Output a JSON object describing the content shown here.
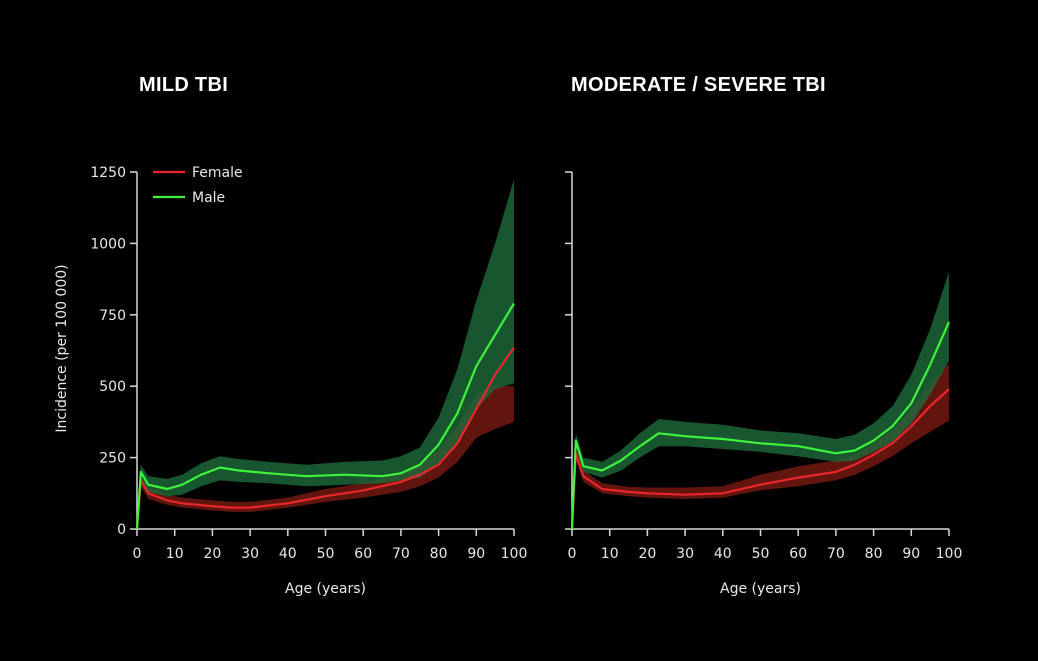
{
  "chart_data": [
    {
      "type": "line",
      "title": "MILD TBI",
      "xlabel": "Age (years)",
      "ylabel": "Incidence (per 100 000)",
      "xlim": [
        0,
        100
      ],
      "ylim": [
        0,
        1250
      ],
      "xticks": [
        0,
        10,
        20,
        30,
        40,
        50,
        60,
        70,
        80,
        90,
        100
      ],
      "yticks": [
        0,
        250,
        500,
        750,
        1000,
        1250
      ],
      "legend": "top-left",
      "series": [
        {
          "name": "Female",
          "color": "#e8262c",
          "band_color": "#7a1a12",
          "x": [
            0,
            1,
            3,
            8,
            12,
            20,
            25,
            30,
            40,
            50,
            60,
            70,
            75,
            80,
            85,
            90,
            95,
            100
          ],
          "y": [
            0,
            170,
            125,
            100,
            90,
            80,
            75,
            75,
            90,
            115,
            135,
            165,
            190,
            225,
            300,
            420,
            540,
            635
          ],
          "lower": [
            0,
            150,
            105,
            85,
            75,
            65,
            60,
            60,
            75,
            95,
            110,
            130,
            150,
            180,
            235,
            320,
            350,
            375
          ],
          "upper": [
            0,
            185,
            145,
            120,
            110,
            100,
            95,
            95,
            110,
            140,
            160,
            195,
            230,
            275,
            360,
            470,
            500,
            500
          ]
        },
        {
          "name": "Male",
          "color": "#3df23a",
          "band_color": "#1e6b3c",
          "x": [
            0,
            1,
            3,
            8,
            12,
            17,
            22,
            27,
            35,
            45,
            55,
            65,
            70,
            75,
            80,
            85,
            90,
            95,
            100
          ],
          "y": [
            0,
            200,
            155,
            140,
            155,
            190,
            215,
            205,
            195,
            185,
            190,
            185,
            195,
            225,
            295,
            405,
            570,
            680,
            790
          ],
          "lower": [
            0,
            180,
            130,
            115,
            120,
            150,
            170,
            165,
            160,
            150,
            155,
            160,
            170,
            180,
            225,
            300,
            420,
            490,
            510
          ],
          "upper": [
            0,
            225,
            185,
            175,
            190,
            230,
            255,
            245,
            235,
            225,
            235,
            240,
            255,
            285,
            390,
            560,
            800,
            1000,
            1225
          ]
        }
      ]
    },
    {
      "type": "line",
      "title": "MODERATE / SEVERE TBI",
      "xlabel": "Age (years)",
      "ylabel": "",
      "xlim": [
        0,
        100
      ],
      "ylim": [
        0,
        1250
      ],
      "xticks": [
        0,
        10,
        20,
        30,
        40,
        50,
        60,
        70,
        80,
        90,
        100
      ],
      "series": [
        {
          "name": "Female",
          "color": "#e8262c",
          "band_color": "#7a1a12",
          "x": [
            0,
            1,
            3,
            8,
            15,
            20,
            30,
            40,
            50,
            60,
            70,
            75,
            80,
            85,
            90,
            95,
            100
          ],
          "y": [
            0,
            265,
            185,
            140,
            130,
            125,
            120,
            125,
            155,
            180,
            200,
            225,
            260,
            300,
            360,
            430,
            490
          ],
          "lower": [
            0,
            245,
            165,
            125,
            115,
            110,
            105,
            110,
            135,
            150,
            170,
            190,
            220,
            255,
            300,
            340,
            380
          ],
          "upper": [
            0,
            285,
            205,
            160,
            148,
            145,
            145,
            150,
            190,
            220,
            240,
            260,
            300,
            345,
            420,
            510,
            580
          ]
        },
        {
          "name": "Male",
          "color": "#3df23a",
          "band_color": "#1e6b3c",
          "x": [
            0,
            1,
            3,
            8,
            13,
            18,
            23,
            30,
            40,
            50,
            60,
            70,
            75,
            80,
            85,
            90,
            95,
            100
          ],
          "y": [
            0,
            310,
            220,
            205,
            240,
            290,
            335,
            325,
            315,
            300,
            290,
            265,
            275,
            310,
            360,
            440,
            575,
            725
          ],
          "lower": [
            0,
            290,
            200,
            180,
            205,
            250,
            290,
            290,
            280,
            270,
            255,
            235,
            240,
            270,
            305,
            370,
            470,
            590
          ],
          "upper": [
            0,
            335,
            250,
            235,
            275,
            335,
            385,
            375,
            365,
            345,
            335,
            315,
            330,
            370,
            430,
            540,
            700,
            900
          ]
        }
      ]
    }
  ]
}
